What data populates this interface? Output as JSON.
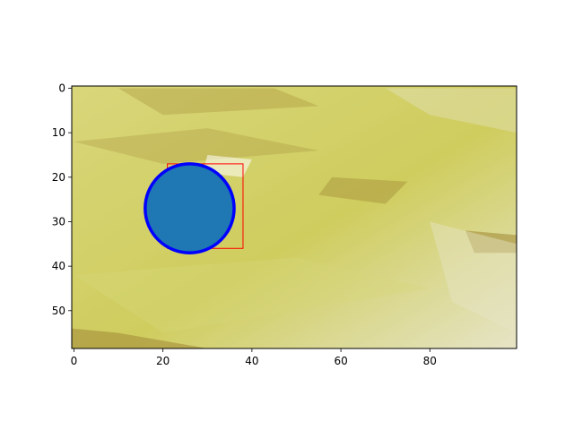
{
  "chart_data": {
    "type": "image",
    "title": "",
    "xlabel": "",
    "ylabel": "",
    "xlim": [
      -0.5,
      99.5
    ],
    "ylim": [
      58.5,
      -0.5
    ],
    "x_ticks": [
      0,
      20,
      40,
      60,
      80
    ],
    "y_ticks": [
      0,
      10,
      20,
      30,
      40,
      50
    ],
    "image": {
      "description": "yellow-green textured pixel image",
      "base_color": "#cfcd5e",
      "band_color_light": "#d8d67a",
      "band_color_dark": "#a58e3a",
      "highlight_color": "#e6e4c6"
    },
    "rectangle": {
      "x0": 21,
      "y0": 17,
      "x1": 38,
      "y1": 36,
      "edge_color": "#ff0000"
    },
    "circle": {
      "cx": 26,
      "cy": 27,
      "r": 10,
      "face_color": "#1f77b4",
      "edge_color": "#0000ff"
    }
  }
}
